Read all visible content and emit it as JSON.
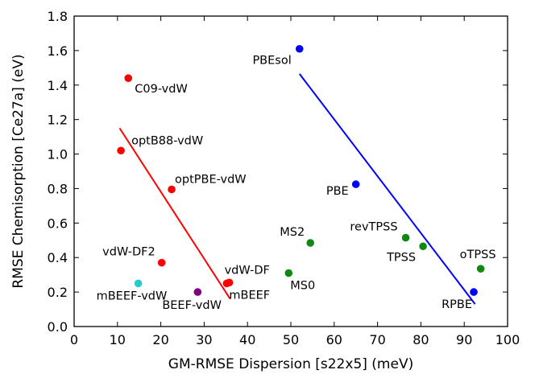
{
  "chart_data": {
    "type": "scatter",
    "xlabel": "GM-RMSE Dispersion [s22x5] (meV)",
    "ylabel": "RMSE Chemisorption [Ce27a] (eV)",
    "xlim": [
      0,
      100
    ],
    "ylim": [
      0,
      1.8
    ],
    "xticks": [
      0,
      10,
      20,
      30,
      40,
      50,
      60,
      70,
      80,
      90,
      100
    ],
    "yticks": [
      0.0,
      0.2,
      0.4,
      0.6,
      0.8,
      1.0,
      1.2,
      1.4,
      1.6,
      1.8
    ],
    "ytick_labels": [
      "0.0",
      "0.2",
      "0.4",
      "0.6",
      "0.8",
      "1.0",
      "1.2",
      "1.4",
      "1.6",
      "1.8"
    ],
    "grid": false,
    "legend": false,
    "points": [
      {
        "label": "C09-vdW",
        "x": 12.5,
        "y": 1.44,
        "color": "#ff0000"
      },
      {
        "label": "optB88-vdW",
        "x": 10.8,
        "y": 1.02,
        "color": "#ff0000"
      },
      {
        "label": "optPBE-vdW",
        "x": 22.5,
        "y": 0.795,
        "color": "#ff0000"
      },
      {
        "label": "vdW-DF2",
        "x": 20.2,
        "y": 0.37,
        "color": "#ff0000"
      },
      {
        "label": "vdW-DF",
        "x": 35.8,
        "y": 0.255,
        "color": "#ff0000"
      },
      {
        "label": "mBEEF",
        "x": 35.2,
        "y": 0.25,
        "color": "#ff0000"
      },
      {
        "label": "mBEEF-vdW",
        "x": 14.8,
        "y": 0.25,
        "color": "#22cccc"
      },
      {
        "label": "BEEF-vdW",
        "x": 28.5,
        "y": 0.2,
        "color": "#800080"
      },
      {
        "label": "PBEsol",
        "x": 52.0,
        "y": 1.61,
        "color": "#0000ff"
      },
      {
        "label": "PBE",
        "x": 65.0,
        "y": 0.825,
        "color": "#0000ff"
      },
      {
        "label": "RPBE",
        "x": 92.2,
        "y": 0.2,
        "color": "#0000ff"
      },
      {
        "label": "MS2",
        "x": 54.5,
        "y": 0.485,
        "color": "#118811"
      },
      {
        "label": "MS0",
        "x": 49.5,
        "y": 0.31,
        "color": "#118811"
      },
      {
        "label": "revTPSS",
        "x": 76.5,
        "y": 0.515,
        "color": "#118811"
      },
      {
        "label": "TPSS",
        "x": 80.5,
        "y": 0.465,
        "color": "#118811"
      },
      {
        "label": "oTPSS",
        "x": 93.8,
        "y": 0.335,
        "color": "#118811"
      }
    ],
    "trend_lines": [
      {
        "color": "#ff0000",
        "x": [
          10.5,
          36.0
        ],
        "y": [
          1.15,
          0.16
        ]
      },
      {
        "color": "#0000ff",
        "x": [
          52.0,
          92.5
        ],
        "y": [
          1.465,
          0.13
        ]
      }
    ]
  }
}
